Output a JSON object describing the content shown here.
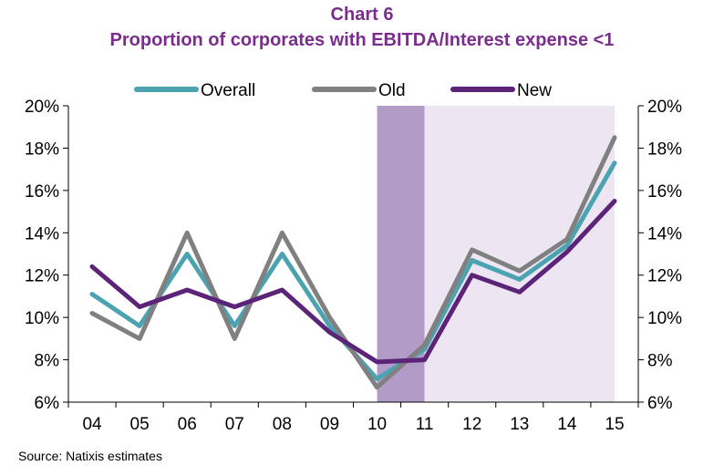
{
  "title": "Chart 6",
  "subtitle": "Proportion of corporates with EBITDA/Interest expense <1",
  "source": "Source: Natixis estimates",
  "chart_data": {
    "type": "line",
    "categories": [
      "04",
      "05",
      "06",
      "07",
      "08",
      "09",
      "10",
      "11",
      "12",
      "13",
      "14",
      "15"
    ],
    "series": [
      {
        "name": "Overall",
        "color": "#4BA3B2",
        "values": [
          11.1,
          9.6,
          13.0,
          9.6,
          13.0,
          9.6,
          7.1,
          8.5,
          12.7,
          11.8,
          13.4,
          17.3
        ]
      },
      {
        "name": "Old",
        "color": "#808080",
        "values": [
          10.2,
          9.0,
          14.0,
          9.0,
          14.0,
          10.0,
          6.7,
          8.7,
          13.2,
          12.2,
          13.7,
          18.5
        ]
      },
      {
        "name": "New",
        "color": "#5C2478",
        "values": [
          12.4,
          10.5,
          11.3,
          10.5,
          11.3,
          9.3,
          7.9,
          8.0,
          12.0,
          11.2,
          13.1,
          15.5
        ]
      }
    ],
    "ylim": [
      6,
      20
    ],
    "yticks": [
      "6%",
      "8%",
      "10%",
      "12%",
      "14%",
      "16%",
      "18%",
      "20%"
    ],
    "ytick_values": [
      6,
      8,
      10,
      12,
      14,
      16,
      18,
      20
    ],
    "shaded_regions": [
      {
        "from": "10",
        "to": "11",
        "color": "#B39BC8"
      },
      {
        "from": "11",
        "to": "15",
        "color": "#EDE6F2"
      }
    ],
    "legend_position": "top-center",
    "xlabel": "",
    "ylabel": ""
  }
}
